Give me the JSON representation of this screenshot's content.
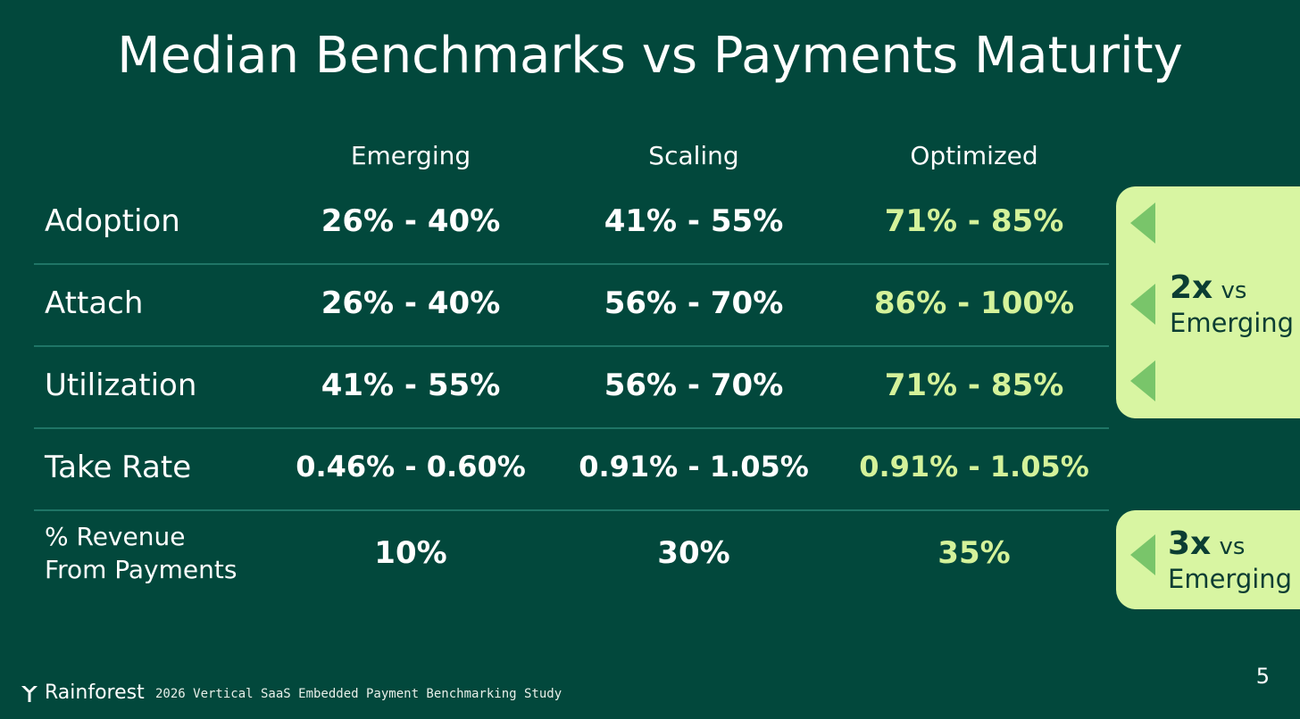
{
  "title": "Median Benchmarks vs Payments Maturity",
  "columns": [
    "Emerging",
    "Scaling",
    "Optimized"
  ],
  "rows": [
    {
      "label": "Adoption",
      "values": [
        "26% - 40%",
        "41% - 55%",
        "71% - 85%"
      ]
    },
    {
      "label": "Attach",
      "values": [
        "26% - 40%",
        "56% - 70%",
        "86% - 100%"
      ]
    },
    {
      "label": "Utilization",
      "values": [
        "41% - 55%",
        "56% - 70%",
        "71% - 85%"
      ]
    },
    {
      "label": "Take Rate",
      "values": [
        "0.46% - 0.60%",
        "0.91% - 1.05%",
        "0.91% - 1.05%"
      ]
    },
    {
      "label_line1": "% Revenue",
      "label_line2": "From Payments",
      "values": [
        "10%",
        "30%",
        "35%"
      ]
    }
  ],
  "callouts": [
    {
      "multiplier": "2x",
      "vs": "vs",
      "target": "Emerging"
    },
    {
      "multiplier": "3x",
      "vs": "vs",
      "target": "Emerging"
    }
  ],
  "footer": {
    "brand": "Rainforest",
    "study": "2026 Vertical SaaS Embedded Payment Benchmarking Study",
    "page": "5"
  },
  "colors": {
    "background": "#02483c",
    "accent": "#d4f29a",
    "callout_bg": "#d8f5a2",
    "arrow": "#79c56a"
  }
}
